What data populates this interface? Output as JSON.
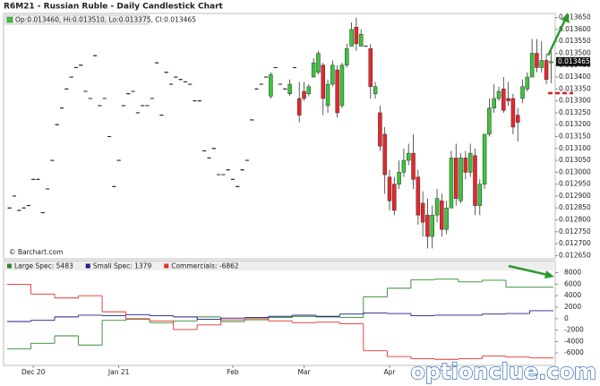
{
  "chart_data": [
    {
      "type": "candlestick",
      "title": "R6M21 - Russian Ruble - Daily Candlestick Chart",
      "ohlc_label": "Op:0.013460, Hi:0.013510, Lo:0.013375, Cl:0.013465",
      "source": "© Barchart.com",
      "up_color": "#3cc43c",
      "down_color": "#e8262a",
      "flat_color": "#222222",
      "categories": [
        null,
        null,
        null,
        null,
        null,
        "Dec 20",
        null,
        null,
        null,
        null,
        null,
        null,
        null,
        null,
        null,
        null,
        null,
        null,
        null,
        null,
        null,
        null,
        null,
        "Jan 21",
        null,
        null,
        null,
        null,
        null,
        null,
        null,
        null,
        null,
        null,
        null,
        null,
        null,
        null,
        null,
        null,
        null,
        null,
        null,
        null,
        null,
        null,
        null,
        "Feb",
        null,
        null,
        null,
        null,
        null,
        null,
        null,
        null,
        null,
        null,
        null,
        null,
        null,
        null,
        "Mar",
        null,
        null,
        null,
        null,
        null,
        null,
        null,
        null,
        null,
        null,
        null,
        null,
        null,
        null,
        null,
        null,
        null,
        "Apr",
        null,
        null,
        null,
        null,
        null,
        null,
        null,
        null,
        null,
        null,
        null,
        null,
        null,
        null,
        null,
        null,
        null,
        null,
        null,
        null,
        null,
        null,
        null,
        null,
        null,
        null,
        null,
        null,
        null,
        null,
        null,
        null,
        null,
        null
      ],
      "open": [
        0.01285,
        0.0129,
        0.01284,
        0.01285,
        0.01286,
        0.01297,
        0.01297,
        0.01283,
        0.01293,
        0.01305,
        0.0132,
        0.01327,
        0.01335,
        0.0134,
        0.01344,
        0.01345,
        0.01334,
        0.01331,
        0.01349,
        0.01328,
        0.01331,
        0.01315,
        0.01294,
        0.01305,
        0.01328,
        0.01333,
        0.01334,
        0.01325,
        0.01328,
        0.01328,
        0.01331,
        0.01346,
        0.01324,
        0.01342,
        0.01337,
        0.0134,
        0.01339,
        0.01338,
        0.01337,
        0.0133,
        0.0133,
        0.01309,
        0.01306,
        0.0131,
        0.01299,
        0.01299,
        0.01301,
        0.01297,
        0.01294,
        0.01301,
        0.01305,
        0.01322,
        0.01335,
        0.01337,
        0.0134,
        0.01332,
        0.01344,
        0.01337,
        0.01335,
        0.01333,
        0.01344,
        0.01331,
        0.01334,
        0.01333,
        0.0134,
        0.01342,
        0.01345,
        0.01328,
        0.01337,
        0.01343,
        0.01328,
        0.01345,
        0.01353,
        0.01361,
        0.01353,
        0.01353,
        0.01352,
        0.01333,
        0.01325,
        0.01316,
        0.01298,
        0.01295,
        0.01295,
        0.013,
        0.01305,
        0.01308,
        0.01298,
        0.01287,
        0.01282,
        0.01273,
        0.01282,
        0.01288,
        0.01276,
        0.01285,
        0.01306,
        0.01288,
        0.01306,
        0.013,
        0.01307,
        0.01286,
        0.01295,
        0.01316,
        0.01327,
        0.01331,
        0.01335,
        0.01331,
        0.01331,
        0.01324,
        0.01331,
        0.01335,
        0.0134,
        0.0135,
        0.01344,
        0.01347,
        0.01346
      ],
      "high": [
        0.01285,
        0.0129,
        0.01284,
        0.01285,
        0.01286,
        0.01297,
        0.01297,
        0.01283,
        0.01293,
        0.01305,
        0.0132,
        0.01327,
        0.01335,
        0.0134,
        0.01344,
        0.01345,
        0.01334,
        0.01331,
        0.01349,
        0.01328,
        0.01331,
        0.01315,
        0.01294,
        0.01305,
        0.01328,
        0.01333,
        0.01334,
        0.01325,
        0.01328,
        0.01328,
        0.01331,
        0.01346,
        0.01324,
        0.01342,
        0.01337,
        0.0134,
        0.01339,
        0.01338,
        0.01337,
        0.0133,
        0.0133,
        0.01309,
        0.01306,
        0.0131,
        0.01299,
        0.01299,
        0.01301,
        0.01297,
        0.01294,
        0.01301,
        0.01305,
        0.01322,
        0.01335,
        0.01337,
        0.0134,
        0.01342,
        0.01344,
        0.01337,
        0.01335,
        0.01339,
        0.01344,
        0.01338,
        0.01338,
        0.01337,
        0.01348,
        0.01351,
        0.01346,
        0.01339,
        0.01347,
        0.01345,
        0.01346,
        0.01354,
        0.01363,
        0.01365,
        0.0136,
        0.01353,
        0.01354,
        0.01338,
        0.01328,
        0.01319,
        0.01301,
        0.01298,
        0.01305,
        0.0131,
        0.01312,
        0.01316,
        0.01301,
        0.01292,
        0.01289,
        0.01286,
        0.01293,
        0.01291,
        0.01288,
        0.01309,
        0.01312,
        0.01308,
        0.01309,
        0.01312,
        0.0131,
        0.01297,
        0.01316,
        0.01331,
        0.01337,
        0.01336,
        0.0134,
        0.01338,
        0.01333,
        0.01327,
        0.01339,
        0.01342,
        0.01356,
        0.01356,
        0.01355,
        0.0135,
        0.01351
      ],
      "low": [
        0.01285,
        0.0129,
        0.01284,
        0.01285,
        0.01286,
        0.01297,
        0.01297,
        0.01283,
        0.01293,
        0.01305,
        0.0132,
        0.01327,
        0.01335,
        0.0134,
        0.01344,
        0.01345,
        0.01334,
        0.01331,
        0.01349,
        0.01328,
        0.01331,
        0.01315,
        0.01294,
        0.01305,
        0.01328,
        0.01333,
        0.01334,
        0.01325,
        0.01328,
        0.01328,
        0.01331,
        0.01346,
        0.01324,
        0.01342,
        0.01337,
        0.0134,
        0.01339,
        0.01338,
        0.01337,
        0.0133,
        0.0133,
        0.01309,
        0.01306,
        0.0131,
        0.01299,
        0.01299,
        0.01301,
        0.01297,
        0.01294,
        0.01301,
        0.01305,
        0.01322,
        0.01335,
        0.01337,
        0.0134,
        0.01331,
        0.01344,
        0.01337,
        0.01335,
        0.01332,
        0.01344,
        0.01321,
        0.0133,
        0.01332,
        0.0134,
        0.01341,
        0.01324,
        0.01325,
        0.01336,
        0.01323,
        0.01327,
        0.01344,
        0.01353,
        0.01351,
        0.01353,
        0.01353,
        0.01331,
        0.01331,
        0.01309,
        0.01291,
        0.01284,
        0.01282,
        0.01293,
        0.01298,
        0.01303,
        0.01293,
        0.01278,
        0.01273,
        0.01268,
        0.01268,
        0.01279,
        0.01273,
        0.01274,
        0.01285,
        0.01286,
        0.01287,
        0.01297,
        0.01298,
        0.01282,
        0.01282,
        0.01293,
        0.01315,
        0.01325,
        0.0133,
        0.01325,
        0.01328,
        0.01316,
        0.01313,
        0.01329,
        0.01334,
        0.0134,
        0.01342,
        0.01342,
        0.01337,
        0.013375
      ],
      "close": [
        0.01285,
        0.0129,
        0.01284,
        0.01285,
        0.01286,
        0.01297,
        0.01297,
        0.01283,
        0.01293,
        0.01305,
        0.0132,
        0.01327,
        0.01335,
        0.0134,
        0.01344,
        0.01345,
        0.01334,
        0.01331,
        0.01349,
        0.01328,
        0.01331,
        0.01315,
        0.01294,
        0.01305,
        0.01328,
        0.01333,
        0.01334,
        0.01325,
        0.01328,
        0.01328,
        0.01331,
        0.01346,
        0.01324,
        0.01342,
        0.01337,
        0.0134,
        0.01339,
        0.01338,
        0.01337,
        0.0133,
        0.0133,
        0.01309,
        0.01306,
        0.0131,
        0.01299,
        0.01299,
        0.01301,
        0.01297,
        0.01294,
        0.01301,
        0.01305,
        0.01322,
        0.01335,
        0.01337,
        0.0134,
        0.01341,
        0.01344,
        0.01337,
        0.01335,
        0.01337,
        0.01344,
        0.01324,
        0.01331,
        0.01336,
        0.01346,
        0.0135,
        0.01331,
        0.01337,
        0.01345,
        0.01325,
        0.01345,
        0.01352,
        0.0136,
        0.01354,
        0.01358,
        0.01353,
        0.01336,
        0.01336,
        0.01311,
        0.01299,
        0.01288,
        0.01284,
        0.013,
        0.01305,
        0.01308,
        0.01297,
        0.01282,
        0.01279,
        0.01273,
        0.01282,
        0.01289,
        0.01276,
        0.01285,
        0.01306,
        0.01289,
        0.01306,
        0.013,
        0.01308,
        0.01286,
        0.01295,
        0.01316,
        0.01327,
        0.01331,
        0.01334,
        0.01326,
        0.0133,
        0.01319,
        0.01321,
        0.01336,
        0.0134,
        0.0135,
        0.01344,
        0.01347,
        0.01339,
        0.013465
      ],
      "ylim": [
        0.01264,
        0.01366
      ],
      "yticks": [
        {
          "value": 0.01265,
          "label": "0.012650"
        },
        {
          "value": 0.0127,
          "label": "0.012700"
        },
        {
          "value": 0.01275,
          "label": "0.012750"
        },
        {
          "value": 0.0128,
          "label": "0.012800"
        },
        {
          "value": 0.01285,
          "label": "0.012850"
        },
        {
          "value": 0.0129,
          "label": "0.012900"
        },
        {
          "value": 0.01295,
          "label": "0.012950"
        },
        {
          "value": 0.013,
          "label": "0.013000"
        },
        {
          "value": 0.01305,
          "label": "0.013050"
        },
        {
          "value": 0.0131,
          "label": "0.013100"
        },
        {
          "value": 0.01315,
          "label": "0.013150"
        },
        {
          "value": 0.0132,
          "label": "0.013200"
        },
        {
          "value": 0.01325,
          "label": "0.013250"
        },
        {
          "value": 0.0133,
          "label": "0.013300"
        },
        {
          "value": 0.01335,
          "label": "0.013350"
        },
        {
          "value": 0.0134,
          "label": "0.013400"
        },
        {
          "value": 0.01345,
          "label": "0.013450"
        },
        {
          "value": 0.0135,
          "label": "0.013500"
        },
        {
          "value": 0.01355,
          "label": "0.013550"
        },
        {
          "value": 0.0136,
          "label": "0.013600"
        },
        {
          "value": 0.01365,
          "label": "0.013650"
        }
      ]
    },
    {
      "type": "step",
      "series": [
        {
          "name": "Large Spec: 5483",
          "color": "#2e8b2e",
          "values": [
            -5300,
            -4300,
            -3000,
            -4600,
            -300,
            -100,
            -700,
            -400,
            300,
            -500,
            -200,
            200,
            400,
            300,
            200,
            3800,
            5300,
            6800,
            6900,
            6400,
            6700,
            5483,
            5483
          ]
        },
        {
          "name": "Small Spec: 1379",
          "color": "#1c1c8c",
          "values": [
            -500,
            -300,
            300,
            600,
            500,
            700,
            500,
            300,
            -100,
            100,
            200,
            400,
            600,
            400,
            800,
            1000,
            900,
            500,
            600,
            600,
            800,
            900,
            1379
          ]
        },
        {
          "name": "Commercials: -6862",
          "color": "#e8302a",
          "values": [
            6000,
            4300,
            3600,
            4000,
            1200,
            0,
            -400,
            -1900,
            -1100,
            -200,
            0,
            -400,
            -700,
            -600,
            -900,
            -5600,
            -6600,
            -7000,
            -7100,
            -7000,
            -6500,
            -6700,
            -6862
          ]
        }
      ],
      "ylim": [
        -8000,
        9500
      ],
      "yticks": [
        -6000,
        -4000,
        -2000,
        0,
        2000,
        4000,
        6000,
        8000
      ]
    }
  ],
  "watermark": "optionclue.com"
}
